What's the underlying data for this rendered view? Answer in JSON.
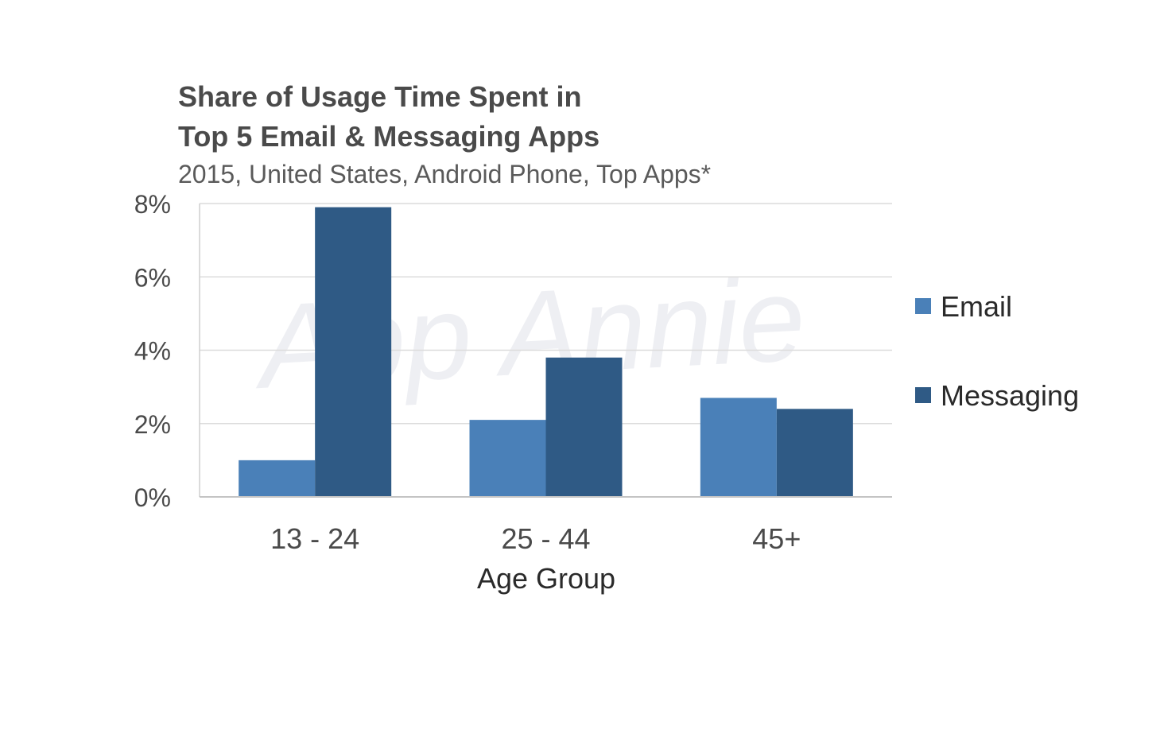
{
  "chart_data": {
    "type": "bar",
    "title_lines": [
      "Share of Usage Time Spent in",
      "Top 5 Email & Messaging Apps"
    ],
    "subtitle": "2015, United States, Android Phone, Top Apps*",
    "xlabel": "Age Group",
    "ylabel": "",
    "categories": [
      "13 - 24",
      "25 - 44",
      "45+"
    ],
    "series": [
      {
        "name": "Email",
        "values": [
          1.0,
          2.1,
          2.7
        ],
        "color": "#4a80b8"
      },
      {
        "name": "Messaging",
        "values": [
          7.9,
          3.8,
          2.4
        ],
        "color": "#2f5a85"
      }
    ],
    "ylim": [
      0,
      8
    ],
    "yticks": [
      0,
      2,
      4,
      6,
      8
    ],
    "ytick_labels": [
      "0%",
      "2%",
      "4%",
      "6%",
      "8%"
    ],
    "grid": true,
    "legend_position": "right",
    "watermark": "App Annie"
  }
}
